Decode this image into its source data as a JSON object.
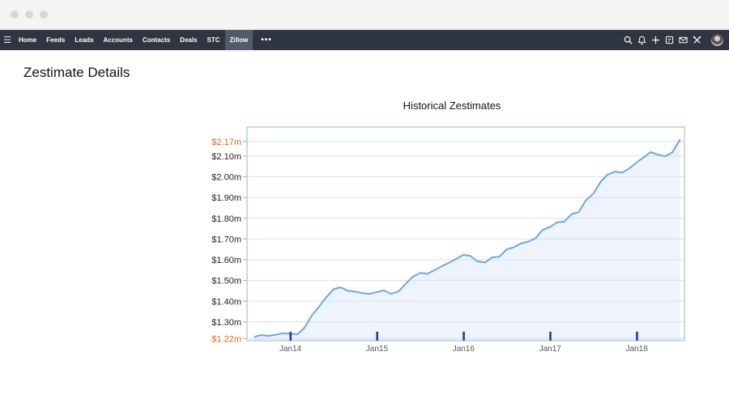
{
  "window": {
    "controls": [
      "close",
      "minimize",
      "maximize"
    ]
  },
  "nav": {
    "menu_icon": "hamburger-icon",
    "items": [
      "Home",
      "Feeds",
      "Leads",
      "Accounts",
      "Contacts",
      "Deals",
      "STC",
      "Zillow"
    ],
    "active": "Zillow",
    "more_label": "•••",
    "right_icons": [
      "search-icon",
      "bell-icon",
      "plus-icon",
      "calendar-icon",
      "mail-icon",
      "tools-icon",
      "avatar"
    ]
  },
  "page": {
    "title": "Zestimate Details"
  },
  "chart_data": {
    "type": "area",
    "title": "Historical Zestimates",
    "xlabel": "",
    "ylabel": "",
    "ylim": [
      1.21,
      2.24
    ],
    "xlim": [
      2013.5,
      2018.55
    ],
    "yticks": [
      {
        "value": 2.17,
        "label": "$2.17m",
        "highlight": true
      },
      {
        "value": 2.1,
        "label": "$2.10m"
      },
      {
        "value": 2.0,
        "label": "$2.00m"
      },
      {
        "value": 1.9,
        "label": "$1.90m"
      },
      {
        "value": 1.8,
        "label": "$1.80m"
      },
      {
        "value": 1.7,
        "label": "$1.70m"
      },
      {
        "value": 1.6,
        "label": "$1.60m"
      },
      {
        "value": 1.5,
        "label": "$1.50m"
      },
      {
        "value": 1.4,
        "label": "$1.40m"
      },
      {
        "value": 1.3,
        "label": "$1.30m"
      },
      {
        "value": 1.22,
        "label": "$1.22m",
        "highlight": true
      }
    ],
    "xticks": [
      {
        "value": 2014,
        "label": "Jan14"
      },
      {
        "value": 2015,
        "label": "Jan15"
      },
      {
        "value": 2016,
        "label": "Jan16"
      },
      {
        "value": 2017,
        "label": "Jan17"
      },
      {
        "value": 2018,
        "label": "Jan18"
      }
    ],
    "colors": {
      "line": "#6aa8ea",
      "fill": "#eef3fc",
      "frame": "#b9cbec",
      "grid": "#d5e0f5",
      "tick_marker": "#2230a8",
      "highlight": "#e0681c",
      "label": "#222222"
    },
    "series": [
      {
        "name": "Zestimate",
        "x": [
          2013.58,
          2013.66,
          2013.75,
          2013.83,
          2013.91,
          2014.0,
          2014.08,
          2014.16,
          2014.25,
          2014.33,
          2014.41,
          2014.5,
          2014.58,
          2014.66,
          2014.75,
          2014.83,
          2014.91,
          2015.0,
          2015.08,
          2015.16,
          2015.25,
          2015.33,
          2015.41,
          2015.5,
          2015.58,
          2015.66,
          2015.75,
          2015.83,
          2015.91,
          2016.0,
          2016.08,
          2016.16,
          2016.25,
          2016.33,
          2016.41,
          2016.5,
          2016.58,
          2016.66,
          2016.75,
          2016.83,
          2016.91,
          2017.0,
          2017.08,
          2017.16,
          2017.25,
          2017.33,
          2017.41,
          2017.5,
          2017.58,
          2017.66,
          2017.75,
          2017.83,
          2017.91,
          2018.0,
          2018.08,
          2018.16,
          2018.25,
          2018.33,
          2018.41,
          2018.5
        ],
        "values": [
          1.227,
          1.237,
          1.233,
          1.238,
          1.245,
          1.243,
          1.24,
          1.271,
          1.333,
          1.373,
          1.417,
          1.458,
          1.467,
          1.451,
          1.446,
          1.439,
          1.435,
          1.444,
          1.452,
          1.436,
          1.447,
          1.483,
          1.517,
          1.537,
          1.532,
          1.549,
          1.569,
          1.585,
          1.603,
          1.624,
          1.618,
          1.592,
          1.587,
          1.612,
          1.614,
          1.651,
          1.66,
          1.678,
          1.688,
          1.703,
          1.743,
          1.759,
          1.78,
          1.784,
          1.821,
          1.829,
          1.886,
          1.92,
          1.975,
          2.01,
          2.025,
          2.02,
          2.04,
          2.07,
          2.094,
          2.119,
          2.106,
          2.099,
          2.118,
          2.181
        ]
      }
    ]
  }
}
